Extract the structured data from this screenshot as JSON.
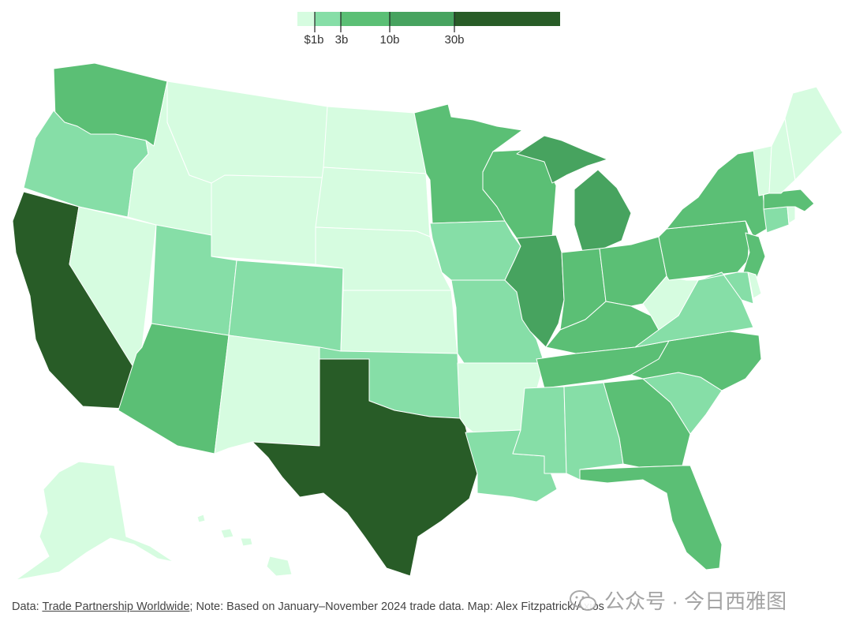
{
  "legend": {
    "bins": [
      {
        "color": "#d6fce0"
      },
      {
        "color": "#86dea7"
      },
      {
        "color": "#5bbf75"
      },
      {
        "color": "#47a35f"
      },
      {
        "color": "#285c27"
      }
    ],
    "ticks": [
      "$1b",
      "3b",
      "10b",
      "30b"
    ]
  },
  "footer": {
    "prefix": "Data: ",
    "source_link": "Trade Partnership Worldwide",
    "rest": "; Note: Based on January–November 2024 trade data. Map: Alex Fitzpatrick/Axios"
  },
  "watermark": {
    "text": "公众号 · 今日西雅图"
  },
  "states": [
    {
      "name": "WA",
      "tier": 2
    },
    {
      "name": "OR",
      "tier": 1
    },
    {
      "name": "CA",
      "tier": 4
    },
    {
      "name": "NV",
      "tier": 0
    },
    {
      "name": "ID",
      "tier": 0
    },
    {
      "name": "MT",
      "tier": 0
    },
    {
      "name": "WY",
      "tier": 0
    },
    {
      "name": "UT",
      "tier": 1
    },
    {
      "name": "AZ",
      "tier": 2
    },
    {
      "name": "CO",
      "tier": 1
    },
    {
      "name": "NM",
      "tier": 0
    },
    {
      "name": "ND",
      "tier": 0
    },
    {
      "name": "SD",
      "tier": 0
    },
    {
      "name": "NE",
      "tier": 0
    },
    {
      "name": "KS",
      "tier": 0
    },
    {
      "name": "OK",
      "tier": 1
    },
    {
      "name": "TX",
      "tier": 4
    },
    {
      "name": "MN",
      "tier": 2
    },
    {
      "name": "IA",
      "tier": 1
    },
    {
      "name": "MO",
      "tier": 1
    },
    {
      "name": "AR",
      "tier": 0
    },
    {
      "name": "LA",
      "tier": 1
    },
    {
      "name": "WI",
      "tier": 2
    },
    {
      "name": "IL",
      "tier": 3
    },
    {
      "name": "MI",
      "tier": 3
    },
    {
      "name": "IN",
      "tier": 2
    },
    {
      "name": "OH",
      "tier": 2
    },
    {
      "name": "KY",
      "tier": 2
    },
    {
      "name": "TN",
      "tier": 2
    },
    {
      "name": "MS",
      "tier": 1
    },
    {
      "name": "AL",
      "tier": 1
    },
    {
      "name": "GA",
      "tier": 2
    },
    {
      "name": "FL",
      "tier": 2
    },
    {
      "name": "SC",
      "tier": 1
    },
    {
      "name": "NC",
      "tier": 2
    },
    {
      "name": "VA",
      "tier": 1
    },
    {
      "name": "WV",
      "tier": 0
    },
    {
      "name": "PA",
      "tier": 2
    },
    {
      "name": "NY",
      "tier": 2
    },
    {
      "name": "NJ",
      "tier": 2
    },
    {
      "name": "DE",
      "tier": 0
    },
    {
      "name": "MD",
      "tier": 1
    },
    {
      "name": "CT",
      "tier": 1
    },
    {
      "name": "RI",
      "tier": 0
    },
    {
      "name": "MA",
      "tier": 2
    },
    {
      "name": "VT",
      "tier": 0
    },
    {
      "name": "NH",
      "tier": 0
    },
    {
      "name": "ME",
      "tier": 0
    },
    {
      "name": "AK",
      "tier": 0
    },
    {
      "name": "HI",
      "tier": 0
    }
  ]
}
